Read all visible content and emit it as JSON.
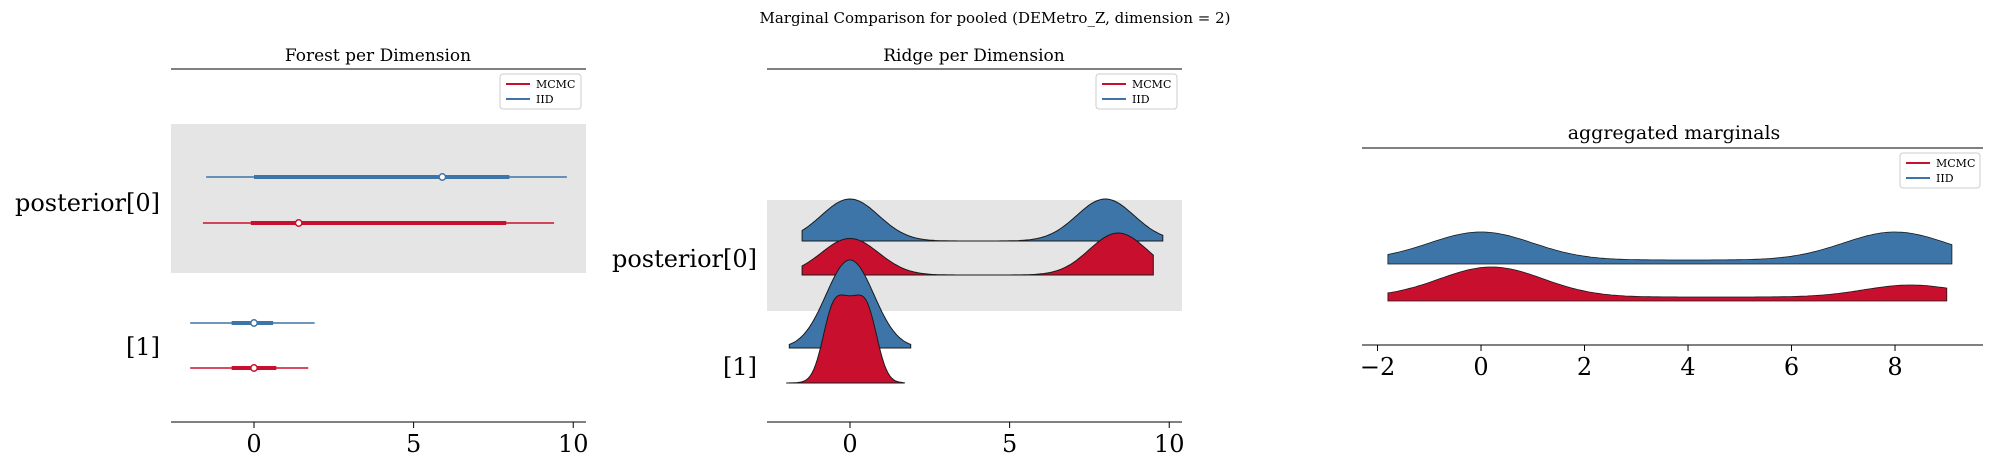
{
  "suptitle": "Marginal Comparison for pooled (DEMetro_Z, dimension = 2)",
  "colors": {
    "mcmc": "#c8102e",
    "iid": "#3e75a8",
    "band": "#e5e5e5"
  },
  "chart_data": [
    {
      "type": "forest",
      "title": "Forest per Dimension",
      "legend": [
        "MCMC",
        "IID"
      ],
      "legend_position": "top-right",
      "y_labels": [
        "posterior[0]",
        "[1]"
      ],
      "xlim": [
        -2.6,
        10.4
      ],
      "xticks": [
        0,
        5,
        10
      ],
      "intervals": [
        {
          "row": "posterior[0]",
          "series": "IID",
          "hdi_low": -1.5,
          "q_low": 0.0,
          "median": 5.9,
          "q_high": 8.0,
          "hdi_high": 9.8
        },
        {
          "row": "posterior[0]",
          "series": "MCMC",
          "hdi_low": -1.6,
          "q_low": -0.1,
          "median": 1.4,
          "q_high": 7.9,
          "hdi_high": 9.4
        },
        {
          "row": "[1]",
          "series": "IID",
          "hdi_low": -2.0,
          "q_low": -0.7,
          "median": 0.0,
          "q_high": 0.6,
          "hdi_high": 1.9
        },
        {
          "row": "[1]",
          "series": "MCMC",
          "hdi_low": -2.0,
          "q_low": -0.7,
          "median": 0.0,
          "q_high": 0.7,
          "hdi_high": 1.7
        }
      ]
    },
    {
      "type": "ridge",
      "title": "Ridge per Dimension",
      "legend": [
        "MCMC",
        "IID"
      ],
      "legend_position": "top-right",
      "y_labels": [
        "posterior[0]",
        "[1]"
      ],
      "xlim": [
        -2.6,
        10.4
      ],
      "xticks": [
        0,
        5,
        10
      ],
      "ridges": [
        {
          "row": "posterior[0]",
          "series": "IID",
          "range": [
            -1.5,
            9.8
          ],
          "components": [
            {
              "mean": 0.0,
              "sd": 0.9,
              "weight": 1.0
            },
            {
              "mean": 8.0,
              "sd": 0.9,
              "weight": 1.0
            }
          ]
        },
        {
          "row": "posterior[0]",
          "series": "MCMC",
          "range": [
            -1.5,
            9.5
          ],
          "components": [
            {
              "mean": 0.0,
              "sd": 0.9,
              "weight": 1.0
            },
            {
              "mean": 8.4,
              "sd": 0.9,
              "weight": 1.15
            }
          ]
        },
        {
          "row": "[1]",
          "series": "IID",
          "range": [
            -1.9,
            1.9
          ],
          "components": [
            {
              "mean": 0.0,
              "sd": 0.75,
              "weight": 1.0
            }
          ]
        },
        {
          "row": "[1]",
          "series": "MCMC",
          "range": [
            -2.0,
            1.7
          ],
          "components": [
            {
              "mean": -0.6,
              "sd": 0.3,
              "weight": 0.5
            },
            {
              "mean": 0.0,
              "sd": 0.5,
              "weight": 1.0
            },
            {
              "mean": 0.6,
              "sd": 0.3,
              "weight": 0.5
            }
          ]
        }
      ]
    },
    {
      "type": "area",
      "title": "aggregated marginals",
      "legend": [
        "MCMC",
        "IID"
      ],
      "legend_position": "top-right",
      "xlim": [
        -2.3,
        9.7
      ],
      "xticks": [
        -2,
        0,
        2,
        4,
        6,
        8
      ],
      "series": [
        {
          "name": "IID",
          "range": [
            -1.8,
            9.1
          ],
          "components": [
            {
              "mean": 0.0,
              "sd": 1.0,
              "weight": 1.0
            },
            {
              "mean": 8.0,
              "sd": 1.0,
              "weight": 1.0
            }
          ]
        },
        {
          "name": "MCMC",
          "range": [
            -1.8,
            9.0
          ],
          "components": [
            {
              "mean": 0.2,
              "sd": 1.0,
              "weight": 1.0
            },
            {
              "mean": 8.3,
              "sd": 0.9,
              "weight": 0.4
            }
          ]
        }
      ]
    }
  ]
}
